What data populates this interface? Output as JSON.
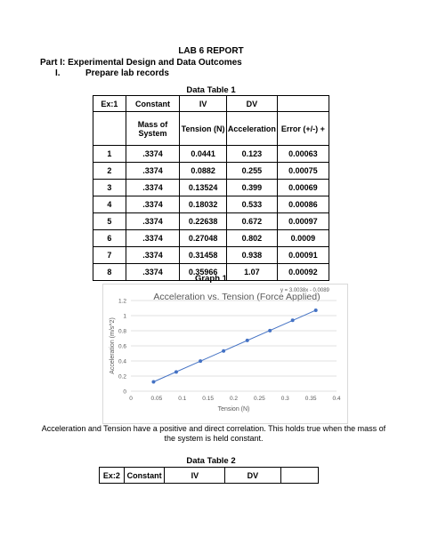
{
  "report_title": "LAB 6 REPORT",
  "part_heading": "Part I: Experimental Design and Data Outcomes",
  "section": {
    "number": "I.",
    "label": "Prepare lab records"
  },
  "table1": {
    "caption": "Data Table 1",
    "header1": [
      "Ex:1",
      "Constant",
      "IV",
      "DV",
      ""
    ],
    "header2": [
      "",
      "Mass of System",
      "Tension (N)",
      "Acceleration",
      "Error (+/-) +"
    ],
    "rows": [
      [
        "1",
        ".3374",
        "0.0441",
        "0.123",
        "0.00063"
      ],
      [
        "2",
        ".3374",
        "0.0882",
        "0.255",
        "0.00075"
      ],
      [
        "3",
        ".3374",
        "0.13524",
        "0.399",
        "0.00069"
      ],
      [
        "4",
        ".3374",
        "0.18032",
        "0.533",
        "0.00086"
      ],
      [
        "5",
        ".3374",
        "0.22638",
        "0.672",
        "0.00097"
      ],
      [
        "6",
        ".3374",
        "0.27048",
        "0.802",
        "0.0009"
      ],
      [
        "7",
        ".3374",
        "0.31458",
        "0.938",
        "0.00091"
      ],
      [
        "8",
        ".3374",
        "0.35966",
        "1.07",
        "0.00092"
      ]
    ]
  },
  "graph_caption": "Graph 1",
  "chart_data": {
    "type": "scatter",
    "title": "Acceleration vs. Tension (Force Applied)",
    "xlabel": "Tension (N)",
    "ylabel": "Acceleration (m/s^2)",
    "trendline_label": "y = 3.0038x - 0.0089",
    "xlim": [
      0,
      0.4
    ],
    "ylim": [
      0,
      1.2
    ],
    "xticks": [
      "0",
      "0.05",
      "0.1",
      "0.15",
      "0.2",
      "0.25",
      "0.3",
      "0.35",
      "0.4"
    ],
    "yticks": [
      "0",
      "0.2",
      "0.4",
      "0.6",
      "0.8",
      "1",
      "1.2"
    ],
    "x": [
      0.0441,
      0.0882,
      0.13524,
      0.18032,
      0.22638,
      0.27048,
      0.31458,
      0.35966
    ],
    "y": [
      0.123,
      0.255,
      0.399,
      0.533,
      0.672,
      0.802,
      0.938,
      1.07
    ],
    "trendline": {
      "slope": 3.0038,
      "intercept": -0.0089
    },
    "colors": {
      "series": "#4472c4",
      "grid": "#d9d9d9",
      "text": "#595959"
    },
    "grid": true
  },
  "paragraph": "Acceleration and Tension have a positive and direct correlation. This holds true when the mass of the system is held constant.",
  "table2": {
    "caption": "Data Table 2",
    "header1": [
      "Ex:2",
      "Constant",
      "IV",
      "DV",
      ""
    ]
  }
}
